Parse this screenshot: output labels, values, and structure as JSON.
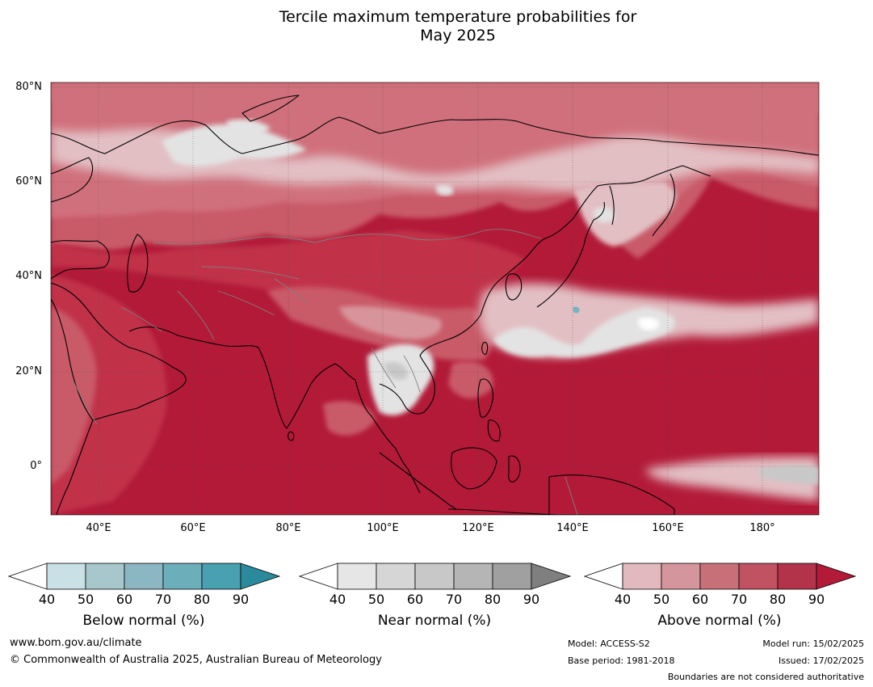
{
  "title": {
    "line1": "Tercile maximum temperature probabilities for",
    "line2": "May 2025"
  },
  "map": {
    "lat_labels": [
      "80°N",
      "60°N",
      "40°N",
      "20°N",
      "0°"
    ],
    "lon_labels": [
      "40°E",
      "60°E",
      "80°E",
      "100°E",
      "120°E",
      "140°E",
      "160°E",
      "180°"
    ],
    "colors": {
      "ocean_above90": "#b21a38",
      "above80": "#c13249",
      "above70": "#c95a68",
      "above60": "#d0707c",
      "above50": "#d8949b",
      "above40": "#e2bfc3",
      "near": "#e3e3e3",
      "near_dark": "#c8c8c8",
      "below": "#7ab3c0",
      "coast": "#000000",
      "border": "#808080",
      "grid": "#444444"
    }
  },
  "colorbars": [
    {
      "label": "Below normal (%)",
      "ticks": [
        "40",
        "50",
        "60",
        "70",
        "80",
        "90"
      ],
      "colors": [
        "#ffffff",
        "#c8e0e6",
        "#a7c7cd",
        "#8ab7c1",
        "#6daebb",
        "#48a0b0",
        "#2a8a9c"
      ]
    },
    {
      "label": "Near normal (%)",
      "ticks": [
        "40",
        "50",
        "60",
        "70",
        "80",
        "90"
      ],
      "colors": [
        "#ffffff",
        "#e6e6e6",
        "#d6d6d6",
        "#c8c8c8",
        "#b5b5b5",
        "#a0a0a0",
        "#7f7f7f"
      ]
    },
    {
      "label": "Above normal (%)",
      "ticks": [
        "40",
        "50",
        "60",
        "70",
        "80",
        "90"
      ],
      "colors": [
        "#ffffff",
        "#e2b9be",
        "#d4959c",
        "#c87078",
        "#c05262",
        "#b3334a",
        "#b21a38"
      ]
    }
  ],
  "footer": {
    "url": "www.bom.gov.au/climate",
    "copyright": "© Commonwealth of Australia 2025, Australian Bureau of Meteorology",
    "model": "Model: ACCESS-S2",
    "base_period": "Base period: 1981-2018",
    "model_run": "Model run: 15/02/2025",
    "issued": "Issued: 17/02/2025",
    "disclaimer": "Boundaries are not considered authoritative"
  }
}
